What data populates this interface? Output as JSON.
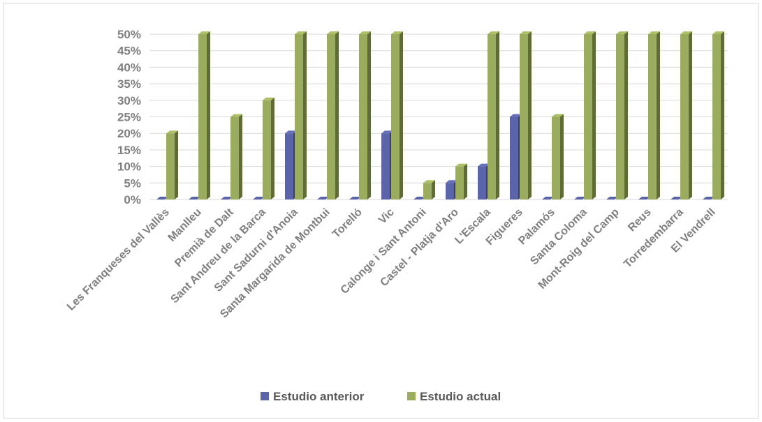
{
  "chart_data": {
    "type": "bar",
    "title": "",
    "xlabel": "",
    "ylabel": "",
    "ylim": [
      0,
      50
    ],
    "y_ticks": [
      "0%",
      "5%",
      "10%",
      "15%",
      "20%",
      "25%",
      "30%",
      "35%",
      "40%",
      "45%",
      "50%"
    ],
    "grid": true,
    "legend_position": "bottom",
    "categories": [
      "Les Franqueses del Vallès",
      "Manlleu",
      "Premià de Dalt",
      "Sant Andreu de la Barca",
      "Sant Sadurni d'Anoia",
      "Santa Margarida de Montbui",
      "Torelló",
      "Vic",
      "Calonge i Sant Antoni",
      "Castel - Platja d'Aro",
      "L'Escala",
      "Figueres",
      "Palamós",
      "Santa Coloma",
      "Mont-Roig del Camp",
      "Reus",
      "Torredembarra",
      "El Vendrell"
    ],
    "series": [
      {
        "name": "Estudio anterior",
        "color": "#5b64a8",
        "values": [
          0,
          0,
          0,
          0,
          20,
          0,
          0,
          20,
          0,
          5,
          10,
          25,
          0,
          0,
          0,
          0,
          0,
          0
        ]
      },
      {
        "name": "Estudio actual",
        "color": "#9bac5e",
        "values": [
          20,
          50,
          25,
          30,
          50,
          50,
          50,
          50,
          5,
          10,
          50,
          50,
          25,
          50,
          50,
          50,
          50,
          50
        ]
      }
    ]
  }
}
